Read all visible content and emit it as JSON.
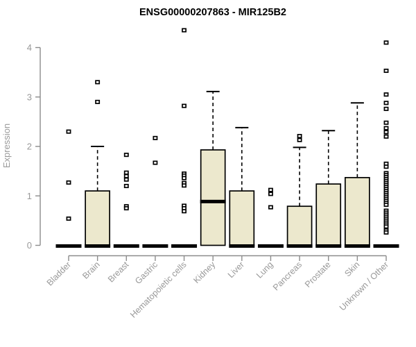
{
  "chart_data": {
    "type": "boxplot",
    "title": "ENSG00000207863 - MIR125B2",
    "ylabel": "Expression",
    "xlabel": "",
    "ylim": [
      0,
      4.4
    ],
    "yticks": [
      0,
      1,
      2,
      3,
      4
    ],
    "grid": false,
    "legend": "none",
    "colors": {
      "box_fill": "#ece8cd",
      "box_stroke": "#000000",
      "axis_line": "#8c8c8c",
      "tick_label": "#999999",
      "title": "#000000"
    },
    "categories": [
      "Bladder",
      "Brain",
      "Breast",
      "Gastric",
      "Hematopoietic cells",
      "Kidney",
      "Liver",
      "Lung",
      "Pancreas",
      "Prostate",
      "Skin",
      "Unknown / Other"
    ],
    "series": [
      {
        "category": "Bladder",
        "whisker_low": 0,
        "q1": 0,
        "median": 0,
        "q3": 0,
        "whisker_high": 0,
        "outliers": [
          2.3,
          1.27,
          0.54
        ]
      },
      {
        "category": "Brain",
        "whisker_low": 0,
        "q1": 0,
        "median": 0,
        "q3": 1.1,
        "whisker_high": 2.0,
        "outliers": [
          3.3,
          2.9
        ]
      },
      {
        "category": "Breast",
        "whisker_low": 0,
        "q1": 0,
        "median": 0,
        "q3": 0,
        "whisker_high": 0,
        "outliers": [
          1.83,
          1.47,
          1.4,
          1.33,
          1.2,
          0.79,
          0.75
        ]
      },
      {
        "category": "Gastric",
        "whisker_low": 0,
        "q1": 0,
        "median": 0,
        "q3": 0,
        "whisker_high": 0,
        "outliers": [
          2.17,
          1.67
        ]
      },
      {
        "category": "Hematopoietic cells",
        "whisker_low": 0,
        "q1": 0,
        "median": 0,
        "q3": 0,
        "whisker_high": 0,
        "outliers": [
          4.35,
          2.82,
          1.45,
          1.41,
          1.36,
          1.26,
          1.21,
          0.8,
          0.75,
          0.69
        ]
      },
      {
        "category": "Kidney",
        "whisker_low": 0,
        "q1": 0,
        "median": 0.9,
        "q3": 1.93,
        "whisker_high": 3.11,
        "outliers": []
      },
      {
        "category": "Liver",
        "whisker_low": 0,
        "q1": 0,
        "median": 0,
        "q3": 1.1,
        "whisker_high": 2.38,
        "outliers": []
      },
      {
        "category": "Lung",
        "whisker_low": 0,
        "q1": 0,
        "median": 0,
        "q3": 0,
        "whisker_high": 0,
        "outliers": [
          1.12,
          1.04,
          0.77
        ]
      },
      {
        "category": "Pancreas",
        "whisker_low": 0,
        "q1": 0,
        "median": 0,
        "q3": 0.79,
        "whisker_high": 1.98,
        "outliers": [
          2.21,
          2.13
        ]
      },
      {
        "category": "Prostate",
        "whisker_low": 0,
        "q1": 0,
        "median": 0,
        "q3": 1.24,
        "whisker_high": 2.32,
        "outliers": []
      },
      {
        "category": "Skin",
        "whisker_low": 0,
        "q1": 0,
        "median": 0,
        "q3": 1.37,
        "whisker_high": 2.88,
        "outliers": []
      },
      {
        "category": "Unknown / Other",
        "whisker_low": 0,
        "q1": 0,
        "median": 0,
        "q3": 0,
        "whisker_high": 0,
        "outliers": [
          4.1,
          3.53,
          3.05,
          2.88,
          2.76,
          2.48,
          2.37,
          2.29,
          2.2,
          1.65,
          1.59,
          1.46,
          1.42,
          1.38,
          1.34,
          1.3,
          1.26,
          1.22,
          1.18,
          1.14,
          1.1,
          1.06,
          1.02,
          0.98,
          0.94,
          0.9,
          0.86,
          0.82,
          0.7,
          0.66,
          0.62,
          0.58,
          0.54,
          0.5,
          0.46,
          0.42,
          0.38,
          0.3,
          0.26
        ]
      }
    ]
  }
}
